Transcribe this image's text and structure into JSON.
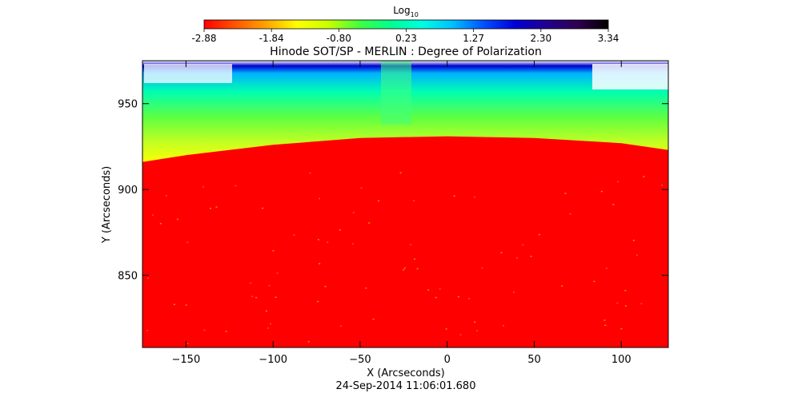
{
  "colorbar": {
    "label_base": "Log",
    "label_sub": "10",
    "ticks": [
      "-2.88",
      "-1.84",
      "-0.80",
      "0.23",
      "1.27",
      "2.30",
      "3.34"
    ],
    "range": [
      -2.88,
      3.34
    ],
    "colormap": [
      "#ff0000",
      "#ff5500",
      "#ffa500",
      "#ffff00",
      "#c8ff00",
      "#40ff40",
      "#00ff90",
      "#00ffe0",
      "#00c0ff",
      "#0050ff",
      "#0000d8",
      "#200090",
      "#300050",
      "#000000"
    ]
  },
  "chart_data": {
    "type": "heatmap",
    "title": "Hinode SOT/SP - MERLIN : Degree of Polarization",
    "xlabel": "X (Arcseconds)",
    "ylabel": "Y (Arcseconds)",
    "xlim": [
      -175,
      127
    ],
    "ylim": [
      808,
      975
    ],
    "xticks": [
      -150,
      -100,
      -50,
      0,
      50,
      100
    ],
    "yticks": [
      850,
      900,
      950
    ],
    "limb_y": [
      {
        "x": -175,
        "y": 916
      },
      {
        "x": -150,
        "y": 920
      },
      {
        "x": -100,
        "y": 926
      },
      {
        "x": -50,
        "y": 930
      },
      {
        "x": 0,
        "y": 931
      },
      {
        "x": 50,
        "y": 930
      },
      {
        "x": 100,
        "y": 927
      },
      {
        "x": 127,
        "y": 923
      }
    ],
    "disk_log10_dop": -2.88,
    "above_limb_log10_dop_range": [
      -1.5,
      1.5
    ],
    "timestamp": "24-Sep-2014 11:06:01.680"
  }
}
